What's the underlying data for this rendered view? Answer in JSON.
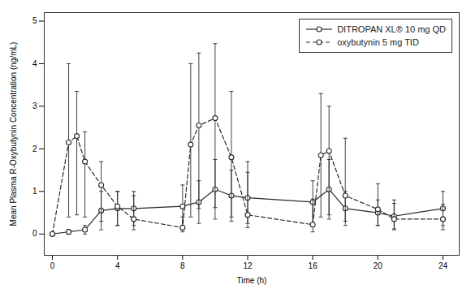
{
  "chart_data": {
    "type": "line",
    "xlabel": "Time (h)",
    "ylabel": "Mean Plasma R-Oxybutynin Concentration (ng/mL)",
    "xlim": [
      -0.5,
      25.0
    ],
    "ylim": [
      -0.5,
      5.2
    ],
    "xticks": [
      0,
      4,
      8,
      12,
      16,
      20,
      24
    ],
    "yticks": [
      0,
      1,
      2,
      3,
      4,
      5
    ],
    "grid": false,
    "legend": "upper right",
    "series": [
      {
        "name": "DITROPAN XL® 10 mg QD",
        "color": "#2a2a2a",
        "line_style": "solid",
        "marker": "circle",
        "x": [
          0,
          1,
          2,
          3,
          4,
          5,
          8,
          9,
          10,
          11,
          12,
          16,
          17,
          18,
          20,
          21,
          24
        ],
        "values": [
          0.0,
          0.05,
          0.1,
          0.55,
          0.6,
          0.6,
          0.65,
          0.75,
          1.05,
          0.9,
          0.85,
          0.75,
          1.05,
          0.6,
          0.5,
          0.42,
          0.6
        ],
        "yerr_lo": [
          0.0,
          0.05,
          0.1,
          0.45,
          0.4,
          0.4,
          0.5,
          0.5,
          0.7,
          0.6,
          0.6,
          0.5,
          0.7,
          0.4,
          0.3,
          0.3,
          0.4
        ],
        "yerr_hi": [
          0.0,
          0.05,
          0.1,
          0.45,
          0.4,
          0.4,
          0.5,
          0.5,
          0.7,
          0.6,
          0.6,
          0.5,
          0.7,
          0.4,
          0.3,
          0.3,
          0.4
        ]
      },
      {
        "name": "oxybutynin 5 mg TID",
        "color": "#2a2a2a",
        "line_style": "dashed",
        "marker": "circle",
        "x": [
          0,
          1.0,
          1.5,
          2.0,
          3.0,
          4.0,
          5.0,
          8.0,
          8.5,
          9.0,
          10.0,
          11.0,
          12.0,
          16.0,
          16.5,
          17.0,
          18.0,
          20.0,
          21.0,
          24.0
        ],
        "values": [
          0.0,
          2.15,
          2.3,
          1.7,
          1.15,
          0.65,
          0.35,
          0.15,
          2.1,
          2.55,
          2.72,
          1.8,
          0.45,
          0.22,
          1.85,
          1.95,
          0.9,
          0.58,
          0.35,
          0.35
        ],
        "yerr_lo": [
          0.0,
          1.75,
          1.85,
          1.3,
          0.85,
          0.45,
          0.25,
          0.1,
          1.7,
          1.95,
          2.1,
          1.4,
          0.3,
          0.17,
          1.45,
          1.5,
          0.6,
          0.38,
          0.25,
          0.25
        ],
        "yerr_hi": [
          0.0,
          1.85,
          1.05,
          0.7,
          0.55,
          0.35,
          0.55,
          0.25,
          1.9,
          1.7,
          1.75,
          1.55,
          1.25,
          0.6,
          1.45,
          1.05,
          1.35,
          0.6,
          0.45,
          0.35
        ]
      }
    ]
  }
}
